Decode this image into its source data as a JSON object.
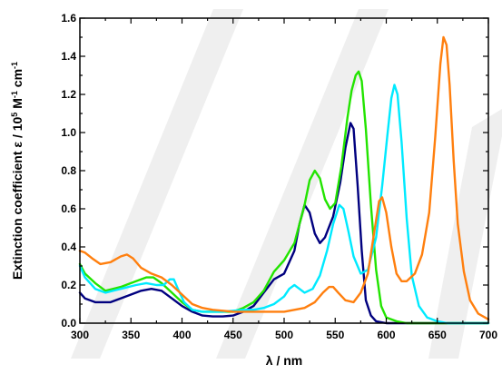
{
  "chart_data": {
    "type": "line",
    "xlabel": "λ / nm",
    "ylabel_parts": {
      "prefix": "Extinction coefficient ε / 10",
      "exp1": "5",
      "mid": " M",
      "exp2": "-1",
      "mid2": " cm",
      "exp3": "-1"
    },
    "xlim": [
      300,
      700
    ],
    "ylim": [
      0,
      1.6
    ],
    "xticks": [
      300,
      350,
      400,
      450,
      500,
      550,
      600,
      650,
      700
    ],
    "yticks": [
      "0.0",
      "0.2",
      "0.4",
      "0.6",
      "0.8",
      "1.0",
      "1.2",
      "1.4",
      "1.6"
    ],
    "grid": false,
    "legend": "none",
    "series": [
      {
        "color": "#00007f",
        "points": [
          [
            300,
            0.16
          ],
          [
            305,
            0.13
          ],
          [
            315,
            0.11
          ],
          [
            330,
            0.11
          ],
          [
            345,
            0.14
          ],
          [
            360,
            0.17
          ],
          [
            370,
            0.18
          ],
          [
            380,
            0.17
          ],
          [
            390,
            0.13
          ],
          [
            400,
            0.09
          ],
          [
            410,
            0.06
          ],
          [
            420,
            0.04
          ],
          [
            430,
            0.035
          ],
          [
            440,
            0.035
          ],
          [
            450,
            0.04
          ],
          [
            460,
            0.06
          ],
          [
            470,
            0.09
          ],
          [
            480,
            0.16
          ],
          [
            490,
            0.23
          ],
          [
            500,
            0.26
          ],
          [
            510,
            0.38
          ],
          [
            515,
            0.52
          ],
          [
            520,
            0.62
          ],
          [
            525,
            0.58
          ],
          [
            530,
            0.47
          ],
          [
            535,
            0.42
          ],
          [
            540,
            0.45
          ],
          [
            548,
            0.56
          ],
          [
            555,
            0.74
          ],
          [
            560,
            0.92
          ],
          [
            565,
            1.05
          ],
          [
            568,
            1.02
          ],
          [
            572,
            0.72
          ],
          [
            576,
            0.38
          ],
          [
            580,
            0.12
          ],
          [
            585,
            0.04
          ],
          [
            590,
            0.01
          ],
          [
            600,
            0
          ],
          [
            700,
            0
          ]
        ]
      },
      {
        "color": "#22e400",
        "points": [
          [
            300,
            0.31
          ],
          [
            305,
            0.26
          ],
          [
            315,
            0.21
          ],
          [
            325,
            0.17
          ],
          [
            340,
            0.19
          ],
          [
            355,
            0.22
          ],
          [
            365,
            0.24
          ],
          [
            372,
            0.24
          ],
          [
            380,
            0.21
          ],
          [
            390,
            0.16
          ],
          [
            400,
            0.11
          ],
          [
            410,
            0.07
          ],
          [
            420,
            0.06
          ],
          [
            440,
            0.06
          ],
          [
            450,
            0.06
          ],
          [
            460,
            0.08
          ],
          [
            470,
            0.11
          ],
          [
            480,
            0.17
          ],
          [
            490,
            0.27
          ],
          [
            500,
            0.33
          ],
          [
            510,
            0.42
          ],
          [
            520,
            0.62
          ],
          [
            525,
            0.75
          ],
          [
            530,
            0.8
          ],
          [
            535,
            0.76
          ],
          [
            540,
            0.65
          ],
          [
            545,
            0.6
          ],
          [
            550,
            0.63
          ],
          [
            556,
            0.82
          ],
          [
            562,
            1.08
          ],
          [
            566,
            1.22
          ],
          [
            570,
            1.3
          ],
          [
            573,
            1.32
          ],
          [
            576,
            1.27
          ],
          [
            580,
            1.02
          ],
          [
            585,
            0.62
          ],
          [
            590,
            0.28
          ],
          [
            595,
            0.09
          ],
          [
            600,
            0.03
          ],
          [
            610,
            0.01
          ],
          [
            620,
            0
          ],
          [
            700,
            0
          ]
        ]
      },
      {
        "color": "#00eaff",
        "points": [
          [
            300,
            0.3
          ],
          [
            305,
            0.24
          ],
          [
            315,
            0.18
          ],
          [
            325,
            0.16
          ],
          [
            340,
            0.18
          ],
          [
            355,
            0.2
          ],
          [
            365,
            0.21
          ],
          [
            375,
            0.2
          ],
          [
            382,
            0.2
          ],
          [
            388,
            0.23
          ],
          [
            392,
            0.23
          ],
          [
            396,
            0.18
          ],
          [
            402,
            0.11
          ],
          [
            410,
            0.07
          ],
          [
            420,
            0.06
          ],
          [
            440,
            0.06
          ],
          [
            460,
            0.07
          ],
          [
            470,
            0.07
          ],
          [
            480,
            0.08
          ],
          [
            490,
            0.1
          ],
          [
            500,
            0.14
          ],
          [
            505,
            0.18
          ],
          [
            510,
            0.2
          ],
          [
            515,
            0.18
          ],
          [
            520,
            0.16
          ],
          [
            528,
            0.18
          ],
          [
            535,
            0.25
          ],
          [
            542,
            0.38
          ],
          [
            548,
            0.52
          ],
          [
            554,
            0.62
          ],
          [
            558,
            0.6
          ],
          [
            563,
            0.48
          ],
          [
            568,
            0.35
          ],
          [
            575,
            0.26
          ],
          [
            582,
            0.28
          ],
          [
            590,
            0.45
          ],
          [
            596,
            0.72
          ],
          [
            601,
            0.98
          ],
          [
            605,
            1.18
          ],
          [
            608,
            1.25
          ],
          [
            611,
            1.2
          ],
          [
            615,
            0.95
          ],
          [
            620,
            0.55
          ],
          [
            625,
            0.25
          ],
          [
            632,
            0.09
          ],
          [
            640,
            0.03
          ],
          [
            650,
            0.01
          ],
          [
            660,
            0
          ],
          [
            700,
            0
          ]
        ]
      },
      {
        "color": "#ff7f0e",
        "points": [
          [
            300,
            0.38
          ],
          [
            305,
            0.37
          ],
          [
            312,
            0.34
          ],
          [
            320,
            0.31
          ],
          [
            330,
            0.32
          ],
          [
            340,
            0.35
          ],
          [
            346,
            0.36
          ],
          [
            352,
            0.34
          ],
          [
            360,
            0.29
          ],
          [
            370,
            0.26
          ],
          [
            380,
            0.24
          ],
          [
            390,
            0.2
          ],
          [
            400,
            0.15
          ],
          [
            410,
            0.1
          ],
          [
            420,
            0.08
          ],
          [
            430,
            0.07
          ],
          [
            450,
            0.06
          ],
          [
            470,
            0.06
          ],
          [
            480,
            0.06
          ],
          [
            490,
            0.06
          ],
          [
            500,
            0.06
          ],
          [
            510,
            0.07
          ],
          [
            520,
            0.08
          ],
          [
            530,
            0.11
          ],
          [
            538,
            0.16
          ],
          [
            544,
            0.19
          ],
          [
            548,
            0.19
          ],
          [
            553,
            0.16
          ],
          [
            560,
            0.12
          ],
          [
            568,
            0.11
          ],
          [
            575,
            0.16
          ],
          [
            582,
            0.26
          ],
          [
            588,
            0.47
          ],
          [
            593,
            0.64
          ],
          [
            596,
            0.66
          ],
          [
            600,
            0.58
          ],
          [
            605,
            0.4
          ],
          [
            610,
            0.26
          ],
          [
            615,
            0.22
          ],
          [
            620,
            0.22
          ],
          [
            628,
            0.26
          ],
          [
            635,
            0.36
          ],
          [
            642,
            0.58
          ],
          [
            648,
            0.98
          ],
          [
            653,
            1.36
          ],
          [
            656,
            1.5
          ],
          [
            659,
            1.46
          ],
          [
            662,
            1.25
          ],
          [
            666,
            0.85
          ],
          [
            670,
            0.52
          ],
          [
            676,
            0.27
          ],
          [
            682,
            0.12
          ],
          [
            690,
            0.05
          ],
          [
            700,
            0.02
          ]
        ]
      }
    ]
  }
}
